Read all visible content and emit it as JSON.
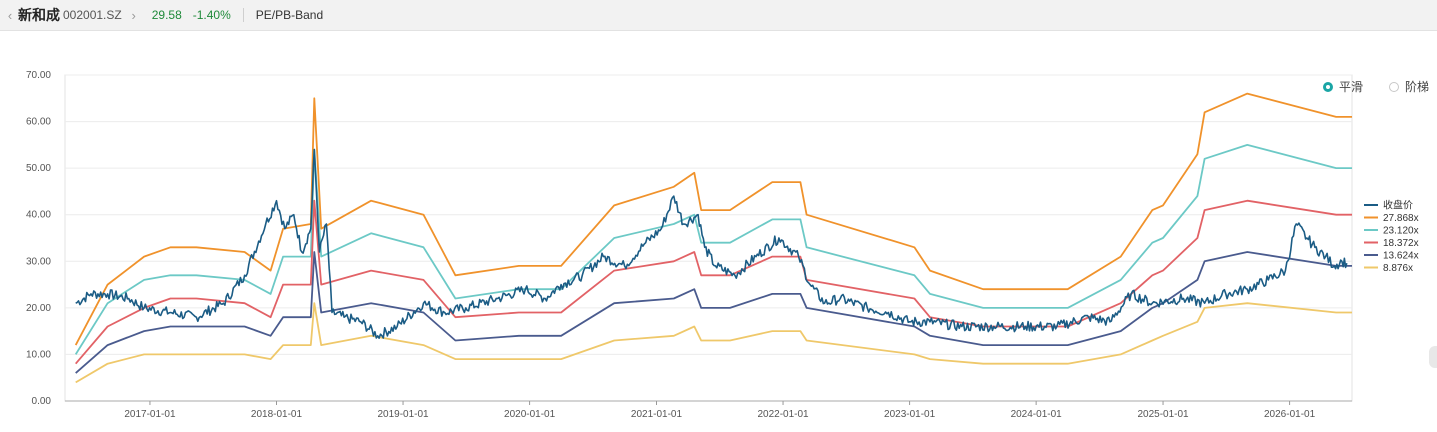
{
  "header": {
    "stock_name": "新和成",
    "stock_code": "002001.SZ",
    "price": "29.58",
    "change": "-1.40%",
    "tab_label": "PE/PB-Band",
    "prev_icon": "chevron-left-icon",
    "next_icon": "chevron-right-icon"
  },
  "mode_options": [
    {
      "label": "平滑",
      "selected": true
    },
    {
      "label": "阶梯",
      "selected": false
    }
  ],
  "colors": {
    "close": "#1b5c85",
    "band1": "#f0922b",
    "band2": "#6cc9c6",
    "band3": "#e26266",
    "band4": "#4a5b8e",
    "band5": "#efc86a",
    "accent": "#1aa5a5"
  },
  "chart_data": {
    "type": "line",
    "x_start": "2016-07-01",
    "x_end": "2026-07-01",
    "xlim": [
      "2016-05-01",
      "2026-06-30"
    ],
    "ylim": [
      0,
      70
    ],
    "y_ticks": [
      "0.00",
      "10.00",
      "20.00",
      "30.00",
      "40.00",
      "50.00",
      "60.00",
      "70.00"
    ],
    "x_ticks": [
      "2017-01-01",
      "2018-01-01",
      "2019-01-01",
      "2020-01-01",
      "2021-01-01",
      "2022-01-01",
      "2023-01-01",
      "2024-01-01",
      "2025-01-01",
      "2026-01-01"
    ],
    "grid": true,
    "legend_position": "right",
    "close": {
      "name": "收盘价",
      "points": [
        [
          "2016-06-01",
          21
        ],
        [
          "2016-07-15",
          23
        ],
        [
          "2016-09-01",
          23
        ],
        [
          "2016-11-01",
          22
        ],
        [
          "2016-12-15",
          20
        ],
        [
          "2017-03-01",
          19
        ],
        [
          "2017-05-15",
          18
        ],
        [
          "2017-08-01",
          21
        ],
        [
          "2017-10-01",
          27
        ],
        [
          "2017-12-01",
          38
        ],
        [
          "2018-01-01",
          43
        ],
        [
          "2018-01-25",
          37
        ],
        [
          "2018-02-20",
          40
        ],
        [
          "2018-03-15",
          32
        ],
        [
          "2018-04-10",
          37
        ],
        [
          "2018-04-20",
          54
        ],
        [
          "2018-05-05",
          32
        ],
        [
          "2018-05-25",
          38
        ],
        [
          "2018-06-10",
          19
        ],
        [
          "2018-07-15",
          18
        ],
        [
          "2018-09-01",
          17
        ],
        [
          "2018-10-20",
          14
        ],
        [
          "2018-12-15",
          16
        ],
        [
          "2019-03-01",
          21
        ],
        [
          "2019-05-01",
          19
        ],
        [
          "2019-07-01",
          20
        ],
        [
          "2019-10-01",
          22
        ],
        [
          "2019-12-20",
          24
        ],
        [
          "2020-02-15",
          22
        ],
        [
          "2020-04-01",
          25
        ],
        [
          "2020-06-01",
          27
        ],
        [
          "2020-08-01",
          31
        ],
        [
          "2020-10-01",
          29
        ],
        [
          "2020-12-01",
          34
        ],
        [
          "2021-01-15",
          37
        ],
        [
          "2021-02-20",
          44
        ],
        [
          "2021-03-20",
          38
        ],
        [
          "2021-05-01",
          40
        ],
        [
          "2021-05-20",
          33
        ],
        [
          "2021-06-20",
          29
        ],
        [
          "2021-08-15",
          27
        ],
        [
          "2021-10-15",
          31
        ],
        [
          "2021-12-20",
          35
        ],
        [
          "2022-02-15",
          31
        ],
        [
          "2022-03-20",
          25
        ],
        [
          "2022-05-01",
          21
        ],
        [
          "2022-06-15",
          22
        ],
        [
          "2022-09-01",
          20
        ],
        [
          "2022-11-01",
          19
        ],
        [
          "2023-01-01",
          17
        ],
        [
          "2023-03-01",
          17
        ],
        [
          "2023-06-01",
          16
        ],
        [
          "2023-09-01",
          16
        ],
        [
          "2023-12-01",
          16
        ],
        [
          "2024-03-01",
          16
        ],
        [
          "2024-06-01",
          18
        ],
        [
          "2024-08-01",
          17
        ],
        [
          "2024-10-01",
          23
        ],
        [
          "2024-12-01",
          21
        ],
        [
          "2025-03-01",
          22
        ],
        [
          "2025-05-01",
          21
        ],
        [
          "2025-07-01",
          23
        ],
        [
          "2025-09-01",
          24
        ],
        [
          "2025-11-01",
          26
        ],
        [
          "2025-12-20",
          28
        ],
        [
          "2026-01-20",
          38
        ],
        [
          "2026-02-20",
          35
        ],
        [
          "2026-03-15",
          33
        ],
        [
          "2026-04-15",
          31
        ],
        [
          "2026-05-10",
          29
        ],
        [
          "2026-06-01",
          30
        ],
        [
          "2026-06-15",
          29.58
        ]
      ]
    },
    "x_breaks": [
      "2016-06-01",
      "2016-09-01",
      "2016-12-15",
      "2017-03-01",
      "2017-05-15",
      "2017-10-01",
      "2017-12-15",
      "2018-01-20",
      "2018-04-10",
      "2018-04-20",
      "2018-05-10",
      "2018-10-01",
      "2019-03-01",
      "2019-06-01",
      "2019-12-01",
      "2020-04-01",
      "2020-09-01",
      "2021-02-20",
      "2021-04-20",
      "2021-05-10",
      "2021-08-01",
      "2021-12-01",
      "2022-02-20",
      "2022-03-10",
      "2023-01-15",
      "2023-03-01",
      "2023-08-01",
      "2024-04-01",
      "2024-09-01",
      "2024-12-01",
      "2025-01-01",
      "2025-04-10",
      "2025-05-01",
      "2025-09-01",
      "2026-05-15",
      "2026-06-30"
    ],
    "series": [
      {
        "name": "27.868x",
        "values": [
          12,
          25,
          31,
          33,
          33,
          32,
          28,
          37,
          38,
          65,
          37,
          43,
          40,
          27,
          29,
          29,
          42,
          46,
          49,
          41,
          41,
          47,
          47,
          40,
          33,
          28,
          24,
          24,
          31,
          41,
          42,
          53,
          62,
          66,
          61,
          61
        ]
      },
      {
        "name": "23.120x",
        "values": [
          10,
          21,
          26,
          27,
          27,
          26,
          23,
          31,
          31,
          54,
          31,
          36,
          33,
          22,
          24,
          24,
          35,
          38,
          40,
          34,
          34,
          39,
          39,
          33,
          27,
          23,
          20,
          20,
          26,
          34,
          35,
          44,
          52,
          55,
          50,
          50
        ]
      },
      {
        "name": "18.372x",
        "values": [
          8,
          16,
          20,
          22,
          22,
          21,
          18,
          25,
          25,
          43,
          25,
          28,
          26,
          18,
          19,
          19,
          28,
          30,
          32,
          27,
          27,
          31,
          31,
          26,
          22,
          18,
          16,
          16,
          21,
          27,
          28,
          35,
          41,
          43,
          40,
          40
        ]
      },
      {
        "name": "13.624x",
        "values": [
          6,
          12,
          15,
          16,
          16,
          16,
          14,
          18,
          18,
          32,
          19,
          21,
          19,
          13,
          14,
          14,
          21,
          22,
          24,
          20,
          20,
          23,
          23,
          20,
          16,
          14,
          12,
          12,
          15,
          20,
          21,
          26,
          30,
          32,
          29,
          29
        ]
      },
      {
        "name": "8.876x",
        "values": [
          4,
          8,
          10,
          10,
          10,
          10,
          9,
          12,
          12,
          21,
          12,
          14,
          12,
          9,
          9,
          9,
          13,
          14,
          16,
          13,
          13,
          15,
          15,
          13,
          10,
          9,
          8,
          8,
          10,
          13,
          14,
          17,
          20,
          21,
          19,
          19
        ]
      }
    ]
  }
}
